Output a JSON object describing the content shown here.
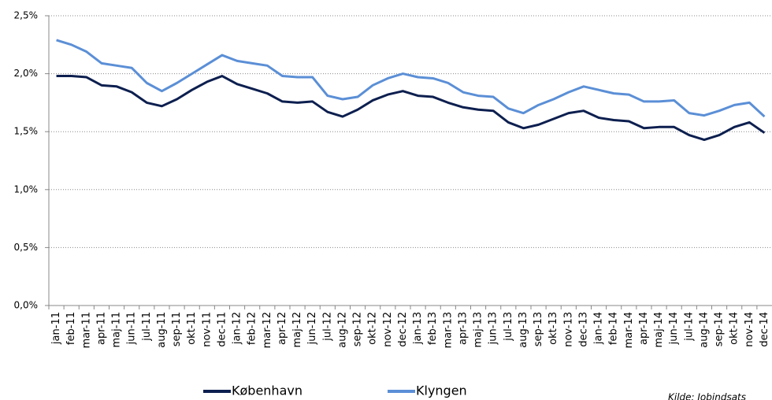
{
  "chart_data": {
    "type": "line",
    "categories": [
      "jan-11",
      "feb-11",
      "mar-11",
      "apr-11",
      "maj-11",
      "jun-11",
      "jul-11",
      "aug-11",
      "sep-11",
      "okt-11",
      "nov-11",
      "dec-11",
      "jan-12",
      "feb-12",
      "mar-12",
      "apr-12",
      "maj-12",
      "jun-12",
      "jul-12",
      "aug-12",
      "sep-12",
      "okt-12",
      "nov-12",
      "dec-12",
      "jan-13",
      "feb-13",
      "mar-13",
      "apr-13",
      "maj-13",
      "jun-13",
      "jul-13",
      "aug-13",
      "sep-13",
      "okt-13",
      "nov-13",
      "dec-13",
      "jan-14",
      "feb-14",
      "mar-14",
      "apr-14",
      "maj-14",
      "jun-14",
      "jul-14",
      "aug-14",
      "sep-14",
      "okt-14",
      "nov-14",
      "dec-14"
    ],
    "series": [
      {
        "name": "København",
        "color": "#0d1f4f",
        "values": [
          1.98,
          1.98,
          1.97,
          1.9,
          1.89,
          1.84,
          1.75,
          1.72,
          1.78,
          1.86,
          1.93,
          1.98,
          1.91,
          1.87,
          1.83,
          1.76,
          1.75,
          1.76,
          1.67,
          1.63,
          1.69,
          1.77,
          1.82,
          1.85,
          1.81,
          1.8,
          1.75,
          1.71,
          1.69,
          1.68,
          1.58,
          1.53,
          1.56,
          1.61,
          1.66,
          1.68,
          1.62,
          1.6,
          1.59,
          1.53,
          1.54,
          1.54,
          1.47,
          1.43,
          1.47,
          1.54,
          1.58,
          1.49
        ]
      },
      {
        "name": "Klyngen",
        "color": "#5b8fd6",
        "values": [
          2.29,
          2.25,
          2.19,
          2.09,
          2.07,
          2.05,
          1.92,
          1.85,
          1.92,
          2.0,
          2.08,
          2.16,
          2.11,
          2.09,
          2.07,
          1.98,
          1.97,
          1.97,
          1.81,
          1.78,
          1.8,
          1.9,
          1.96,
          2.0,
          1.97,
          1.96,
          1.92,
          1.84,
          1.81,
          1.8,
          1.7,
          1.66,
          1.73,
          1.78,
          1.84,
          1.89,
          1.86,
          1.83,
          1.82,
          1.76,
          1.76,
          1.77,
          1.66,
          1.64,
          1.68,
          1.73,
          1.75,
          1.63
        ]
      }
    ],
    "ylim": [
      0,
      2.5
    ],
    "yticks": [
      {
        "value": 0,
        "label": "0,0%"
      },
      {
        "value": 0.5,
        "label": "0,5%"
      },
      {
        "value": 1,
        "label": "1,0%"
      },
      {
        "value": 1.5,
        "label": "1,5%"
      },
      {
        "value": 2,
        "label": "2,0%"
      },
      {
        "value": 2.5,
        "label": "2,5%"
      }
    ],
    "grid": true,
    "legend": "bottom",
    "source": "Kilde: Jobindsats"
  }
}
